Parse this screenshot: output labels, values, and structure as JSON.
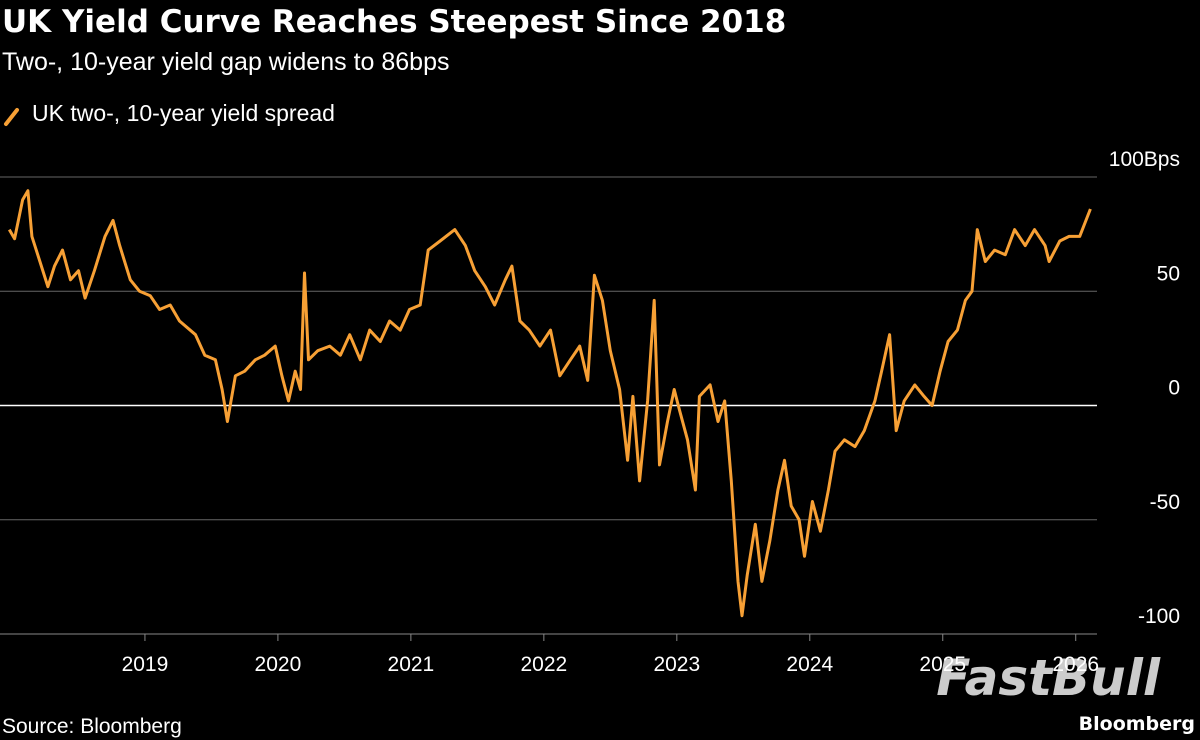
{
  "chart_data": {
    "type": "line",
    "title": "UK Yield Curve Reaches Steepest Since 2018",
    "subtitle": "Two-, 10-year yield gap widens to 86bps",
    "source": "Source: Bloomberg",
    "credit": "Bloomberg",
    "watermark": "FastBull",
    "xlim": [
      2017.91,
      2026.16
    ],
    "xticks": [
      2019,
      2020,
      2021,
      2022,
      2023,
      2024,
      2025,
      2026
    ],
    "ylim": [
      -100,
      100
    ],
    "yticks": [
      {
        "value": 100,
        "label": "100Bps"
      },
      50,
      0,
      -50,
      -100
    ],
    "grid": true,
    "legend": "top-left",
    "x": [
      2017.98,
      2018.02,
      2018.08,
      2018.12,
      2018.15,
      2018.21,
      2018.27,
      2018.32,
      2018.38,
      2018.44,
      2018.5,
      2018.55,
      2018.62,
      2018.7,
      2018.76,
      2018.81,
      2018.89,
      2018.96,
      2019.04,
      2019.11,
      2019.19,
      2019.26,
      2019.38,
      2019.45,
      2019.53,
      2019.58,
      2019.62,
      2019.68,
      2019.75,
      2019.83,
      2019.9,
      2019.98,
      2020.03,
      2020.08,
      2020.13,
      2020.17,
      2020.2,
      2020.23,
      2020.3,
      2020.39,
      2020.47,
      2020.54,
      2020.62,
      2020.69,
      2020.77,
      2020.84,
      2020.92,
      2020.99,
      2021.07,
      2021.13,
      2021.22,
      2021.33,
      2021.41,
      2021.48,
      2021.56,
      2021.63,
      2021.71,
      2021.76,
      2021.82,
      2021.89,
      2021.97,
      2022.05,
      2022.12,
      2022.2,
      2022.27,
      2022.33,
      2022.38,
      2022.44,
      2022.5,
      2022.57,
      2022.63,
      2022.67,
      2022.72,
      2022.78,
      2022.83,
      2022.87,
      2022.93,
      2022.98,
      2023.02,
      2023.08,
      2023.14,
      2023.17,
      2023.25,
      2023.31,
      2023.36,
      2023.41,
      2023.46,
      2023.49,
      2023.53,
      2023.59,
      2023.64,
      2023.7,
      2023.76,
      2023.81,
      2023.86,
      2023.92,
      2023.96,
      2024.02,
      2024.08,
      2024.14,
      2024.19,
      2024.26,
      2024.34,
      2024.41,
      2024.49,
      2024.54,
      2024.6,
      2024.65,
      2024.71,
      2024.79,
      2024.86,
      2024.92,
      2024.98,
      2025.04,
      2025.11,
      2025.17,
      2025.22,
      2025.26,
      2025.32,
      2025.39,
      2025.47,
      2025.54,
      2025.62,
      2025.69,
      2025.77,
      2025.8,
      2025.88,
      2025.95,
      2026.03,
      2026.11
    ],
    "series": [
      {
        "name": "UK two-, 10-year yield spread",
        "color": "#f7a035",
        "values": [
          77,
          73,
          90,
          94,
          74,
          63,
          52,
          61,
          68,
          55,
          59,
          47,
          59,
          74,
          81,
          70,
          55,
          50,
          48,
          42,
          44,
          37,
          31,
          22,
          20,
          7,
          -7,
          13,
          15,
          20,
          22,
          26,
          13,
          2,
          15,
          7,
          58,
          20,
          24,
          26,
          22,
          31,
          20,
          33,
          28,
          37,
          33,
          42,
          44,
          68,
          72,
          77,
          70,
          59,
          52,
          44,
          55,
          61,
          37,
          33,
          26,
          33,
          13,
          20,
          26,
          11,
          57,
          46,
          24,
          7,
          -24,
          4,
          -33,
          2,
          46,
          -26,
          -7,
          7,
          -2,
          -15,
          -37,
          4,
          9,
          -7,
          2,
          -33,
          -77,
          -92,
          -74,
          -52,
          -77,
          -59,
          -37,
          -24,
          -44,
          -50,
          -66,
          -42,
          -55,
          -37,
          -20,
          -15,
          -18,
          -11,
          2,
          15,
          31,
          -11,
          2,
          9,
          4,
          0,
          15,
          28,
          33,
          46,
          50,
          77,
          63,
          68,
          66,
          77,
          70,
          77,
          70,
          63,
          72,
          74,
          74,
          86
        ]
      }
    ]
  }
}
